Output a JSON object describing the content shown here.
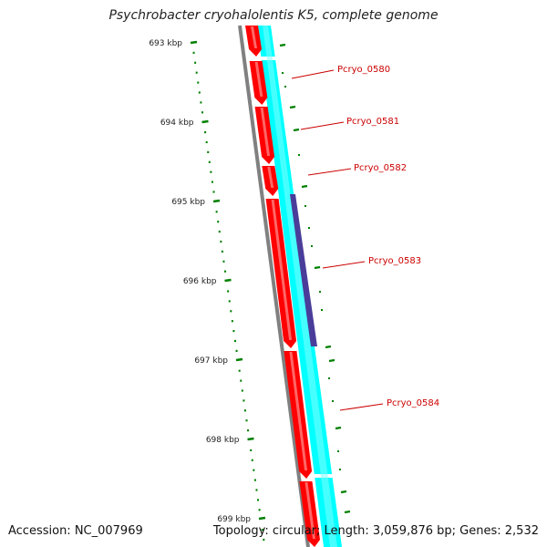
{
  "header": {
    "title": "Psychrobacter cryohalolentis K5, complete genome"
  },
  "footer": {
    "accession": "Accession: NC_007969",
    "summary": "Topology: circular; Length: 3,059,876 bp; Genes: 2,532"
  },
  "ruler": {
    "ticks": [
      "693 kbp",
      "694 kbp",
      "695 kbp",
      "696 kbp",
      "697 kbp",
      "698 kbp",
      "699 kbp"
    ]
  },
  "genes": [
    {
      "name": "Pcryo_0580"
    },
    {
      "name": "Pcryo_0581"
    },
    {
      "name": "Pcryo_0582"
    },
    {
      "name": "Pcryo_0583"
    },
    {
      "name": "Pcryo_0584"
    }
  ],
  "colors": {
    "forward_cds": "#ff0000",
    "forward_cds_highlight": "#ff8080",
    "gene_track": "#00ffff",
    "highlight_segment": "#4a3d99",
    "backbone": "#808080",
    "ruler_ticks": "#008000",
    "gene_label": "#cc0000"
  }
}
